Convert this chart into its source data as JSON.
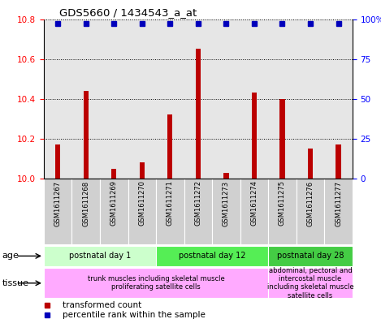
{
  "title": "GDS5660 / 1434543_a_at",
  "samples": [
    "GSM1611267",
    "GSM1611268",
    "GSM1611269",
    "GSM1611270",
    "GSM1611271",
    "GSM1611272",
    "GSM1611273",
    "GSM1611274",
    "GSM1611275",
    "GSM1611276",
    "GSM1611277"
  ],
  "transformed_count": [
    10.17,
    10.44,
    10.05,
    10.08,
    10.32,
    10.65,
    10.03,
    10.43,
    10.4,
    10.15,
    10.17
  ],
  "percentile_rank": [
    97,
    97,
    97,
    97,
    97,
    97,
    97,
    97,
    97,
    97,
    97
  ],
  "ylim_left": [
    10.0,
    10.8
  ],
  "ylim_right": [
    0,
    100
  ],
  "yticks_left": [
    10.0,
    10.2,
    10.4,
    10.6,
    10.8
  ],
  "yticks_right": [
    0,
    25,
    50,
    75,
    100
  ],
  "ytick_labels_right": [
    "0",
    "25",
    "50",
    "75",
    "100%"
  ],
  "bar_color": "#bb0000",
  "dot_color": "#0000bb",
  "age_groups": [
    {
      "label": "postnatal day 1",
      "start": 0,
      "end": 3,
      "color": "#ccffcc"
    },
    {
      "label": "postnatal day 12",
      "start": 4,
      "end": 7,
      "color": "#55ee55"
    },
    {
      "label": "postnatal day 28",
      "start": 8,
      "end": 10,
      "color": "#44cc44"
    }
  ],
  "tissue_groups": [
    {
      "label": "trunk muscles including skeletal muscle\nproliferating satellite cells",
      "start": 0,
      "end": 7,
      "color": "#ffaaff"
    },
    {
      "label": "abdominal, pectoral and\nintercostal muscle\nincluding skeletal muscle\nsatellite cells",
      "start": 8,
      "end": 10,
      "color": "#ffaaff"
    }
  ],
  "legend_red_label": "transformed count",
  "legend_blue_label": "percentile rank within the sample",
  "age_label": "age",
  "tissue_label": "tissue"
}
